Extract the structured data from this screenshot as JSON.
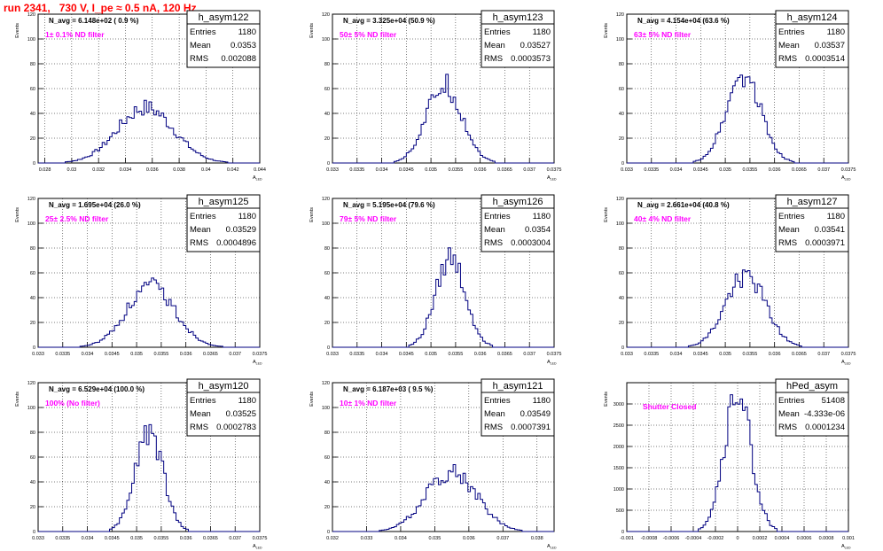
{
  "page_title": "run 2341,   730 V, I_pe ≈ 0.5 nA, 120 Hz",
  "colors": {
    "title": "#ff0000",
    "annotation": "#ff00ff",
    "histogram": "#000080",
    "grid": "#000000",
    "frame": "#000000"
  },
  "chart_data": [
    {
      "type": "bar",
      "name": "h_asym122",
      "stats": {
        "labels": [
          "Entries",
          "Mean",
          "RMS"
        ],
        "values": [
          "1180",
          "0.0353",
          "0.002088"
        ]
      },
      "n_avg": "N_avg = 6.148e+02 ( 0.9 %)",
      "annotation": "1± 0.1% ND filter",
      "ylabel": "Events",
      "xlabel": "A_LED",
      "xlim": [
        0.0275,
        0.044
      ],
      "ylim": [
        0,
        120
      ],
      "xticks": [
        "0.028",
        "0.03",
        "0.032",
        "0.034",
        "0.036",
        "0.038",
        "0.04",
        "0.042",
        "0.044"
      ],
      "yticks": [
        "0",
        "20",
        "40",
        "60",
        "80",
        "100",
        "120"
      ],
      "peak": 46,
      "center": 0.0355,
      "sigma": 0.0021
    },
    {
      "type": "bar",
      "name": "h_asym123",
      "stats": {
        "labels": [
          "Entries",
          "Mean",
          "RMS"
        ],
        "values": [
          "1180",
          "0.03527",
          "0.0003573"
        ]
      },
      "n_avg": "N_avg = 3.325e+04 (50.9 %)",
      "annotation": "50± 5% ND filter",
      "ylabel": "Events",
      "xlabel": "A_LED",
      "xlim": [
        0.033,
        0.0375
      ],
      "ylim": [
        0,
        120
      ],
      "xticks": [
        "0.033",
        "0.0335",
        "0.034",
        "0.0345",
        "0.035",
        "0.0355",
        "0.036",
        "0.0365",
        "0.037",
        "0.0375"
      ],
      "yticks": [
        "0",
        "20",
        "40",
        "60",
        "80",
        "100",
        "120"
      ],
      "peak": 65,
      "center": 0.03527,
      "sigma": 0.00036
    },
    {
      "type": "bar",
      "name": "h_asym124",
      "stats": {
        "labels": [
          "Entries",
          "Mean",
          "RMS"
        ],
        "values": [
          "1180",
          "0.03537",
          "0.0003514"
        ]
      },
      "n_avg": "N_avg = 4.154e+04 (63.6 %)",
      "annotation": "63± 5% ND filter",
      "ylabel": "Events",
      "xlabel": "A_LED",
      "xlim": [
        0.033,
        0.0375
      ],
      "ylim": [
        0,
        120
      ],
      "xticks": [
        "0.033",
        "0.0335",
        "0.034",
        "0.0345",
        "0.035",
        "0.0355",
        "0.036",
        "0.0365",
        "0.037",
        "0.0375"
      ],
      "yticks": [
        "0",
        "20",
        "40",
        "60",
        "80",
        "100",
        "120"
      ],
      "peak": 74,
      "center": 0.03537,
      "sigma": 0.00035
    },
    {
      "type": "bar",
      "name": "h_asym125",
      "stats": {
        "labels": [
          "Entries",
          "Mean",
          "RMS"
        ],
        "values": [
          "1180",
          "0.03529",
          "0.0004896"
        ]
      },
      "n_avg": "N_avg = 1.695e+04 (26.0 %)",
      "annotation": "25± 2.5% ND filter",
      "ylabel": "Events",
      "xlabel": "A_LED",
      "xlim": [
        0.033,
        0.0375
      ],
      "ylim": [
        0,
        120
      ],
      "xticks": [
        "0.033",
        "0.0335",
        "0.034",
        "0.0345",
        "0.035",
        "0.0355",
        "0.036",
        "0.0365",
        "0.037",
        "0.0375"
      ],
      "yticks": [
        "0",
        "20",
        "40",
        "60",
        "80",
        "100",
        "120"
      ],
      "peak": 50,
      "center": 0.03529,
      "sigma": 0.00049
    },
    {
      "type": "bar",
      "name": "h_asym126",
      "stats": {
        "labels": [
          "Entries",
          "Mean",
          "RMS"
        ],
        "values": [
          "1180",
          "0.0354",
          "0.0003004"
        ]
      },
      "n_avg": "N_avg = 5.195e+04 (79.6 %)",
      "annotation": "79± 5% ND filter",
      "ylabel": "Events",
      "xlabel": "A_LED",
      "xlim": [
        0.033,
        0.0375
      ],
      "ylim": [
        0,
        120
      ],
      "xticks": [
        "0.033",
        "0.0335",
        "0.034",
        "0.0345",
        "0.035",
        "0.0355",
        "0.036",
        "0.0365",
        "0.037",
        "0.0375"
      ],
      "yticks": [
        "0",
        "20",
        "40",
        "60",
        "80",
        "100",
        "120"
      ],
      "peak": 75,
      "center": 0.0354,
      "sigma": 0.0003
    },
    {
      "type": "bar",
      "name": "h_asym127",
      "stats": {
        "labels": [
          "Entries",
          "Mean",
          "RMS"
        ],
        "values": [
          "1180",
          "0.03541",
          "0.0003971"
        ]
      },
      "n_avg": "N_avg = 2.661e+04 (40.8 %)",
      "annotation": "40± 4% ND filter",
      "ylabel": "Events",
      "xlabel": "A_LED",
      "xlim": [
        0.033,
        0.0375
      ],
      "ylim": [
        0,
        120
      ],
      "xticks": [
        "0.033",
        "0.0335",
        "0.034",
        "0.0345",
        "0.035",
        "0.0355",
        "0.036",
        "0.0365",
        "0.037",
        "0.0375"
      ],
      "yticks": [
        "0",
        "20",
        "40",
        "60",
        "80",
        "100",
        "120"
      ],
      "peak": 60,
      "center": 0.03541,
      "sigma": 0.0004
    },
    {
      "type": "bar",
      "name": "h_asym120",
      "stats": {
        "labels": [
          "Entries",
          "Mean",
          "RMS"
        ],
        "values": [
          "1180",
          "0.03525",
          "0.0002783"
        ]
      },
      "n_avg": "N_avg = 6.529e+04 (100.0 %)",
      "annotation": "100% (No filter)",
      "ylabel": "Events",
      "xlabel": "A_LED",
      "xlim": [
        0.033,
        0.0375
      ],
      "ylim": [
        0,
        120
      ],
      "xticks": [
        "0.033",
        "0.0335",
        "0.034",
        "0.0345",
        "0.035",
        "0.0355",
        "0.036",
        "0.0365",
        "0.037",
        "0.0375"
      ],
      "yticks": [
        "0",
        "20",
        "40",
        "60",
        "80",
        "100",
        "120"
      ],
      "peak": 84,
      "center": 0.03525,
      "sigma": 0.00028
    },
    {
      "type": "bar",
      "name": "h_asym121",
      "stats": {
        "labels": [
          "Entries",
          "Mean",
          "RMS"
        ],
        "values": [
          "1180",
          "0.03549",
          "0.0007391"
        ]
      },
      "n_avg": "N_avg = 6.187e+03 ( 9.5 %)",
      "annotation": "10± 1% ND filter",
      "ylabel": "Events",
      "xlabel": "A_LED",
      "xlim": [
        0.032,
        0.0385
      ],
      "ylim": [
        0,
        120
      ],
      "xticks": [
        "0.032",
        "0.033",
        "0.034",
        "0.035",
        "0.036",
        "0.037",
        "0.038"
      ],
      "yticks": [
        "0",
        "20",
        "40",
        "60",
        "80",
        "100",
        "120"
      ],
      "peak": 50,
      "center": 0.03549,
      "sigma": 0.00074
    },
    {
      "type": "bar",
      "name": "hPed_asym",
      "stats": {
        "labels": [
          "Entries",
          "Mean",
          "RMS"
        ],
        "values": [
          "51408",
          "-4.333e-06",
          "0.0001234"
        ]
      },
      "n_avg": "",
      "annotation": "Shutter Closed",
      "ylabel": "Events",
      "xlabel": "A_LED",
      "xlim": [
        -0.001,
        0.001
      ],
      "ylim": [
        0,
        3500
      ],
      "xticks": [
        "-0.001",
        "-0.0008",
        "-0.0006",
        "-0.0004",
        "-0.0002",
        "0",
        "0.0002",
        "0.0004",
        "0.0006",
        "0.0008",
        "0.001"
      ],
      "yticks": [
        "0",
        "500",
        "1000",
        "1500",
        "2000",
        "2500",
        "3000"
      ],
      "peak": 3300,
      "center": 0,
      "sigma": 0.000123
    }
  ]
}
